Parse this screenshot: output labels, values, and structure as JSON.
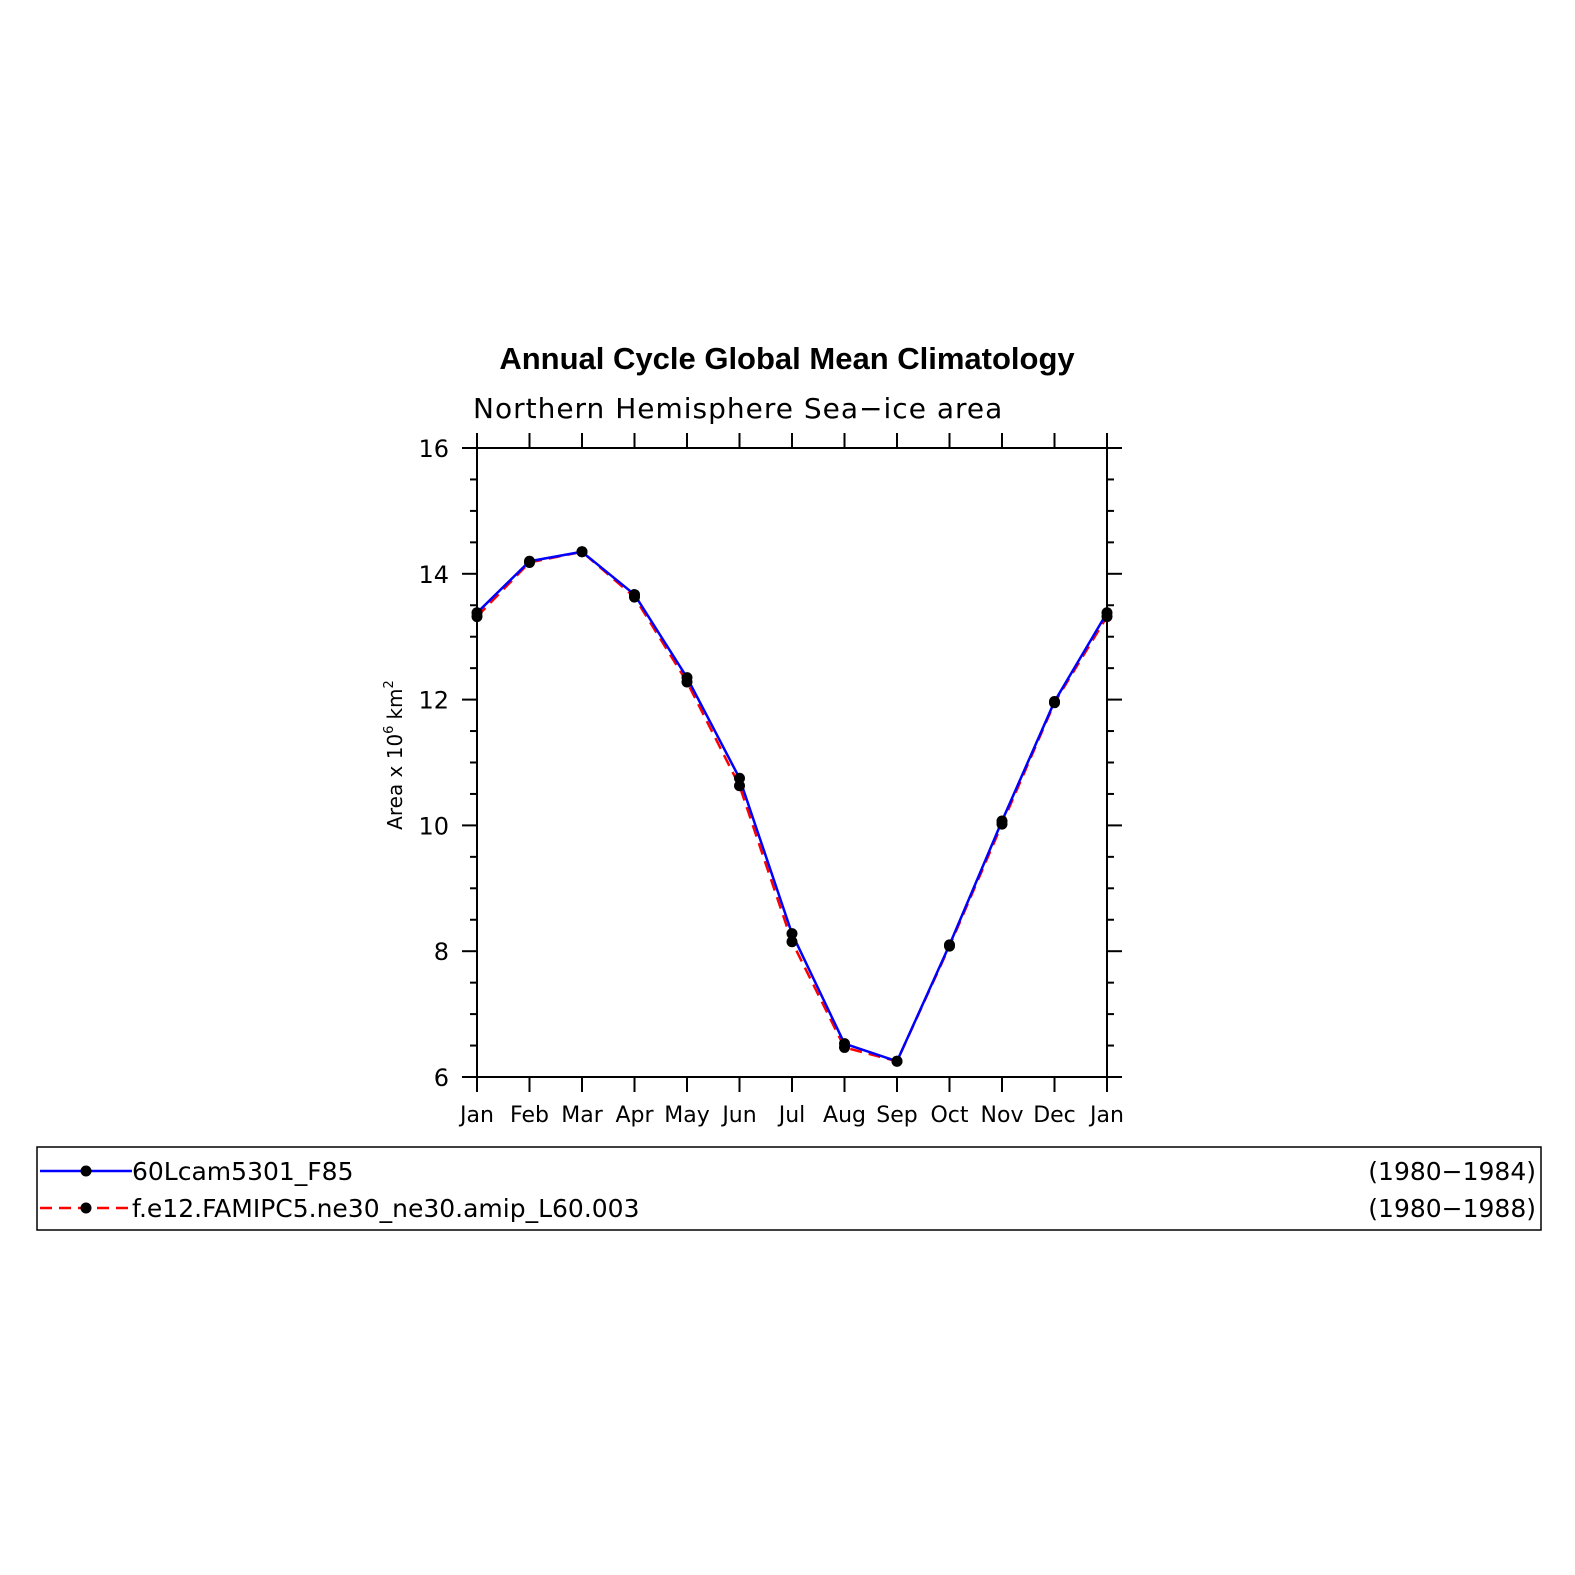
{
  "chart_data": {
    "type": "line",
    "title": "Annual Cycle Global Mean Climatology",
    "subtitle": "Northern Hemisphere Sea−ice area",
    "ylabel": "Area x 10",
    "ylabel_superscript": "6",
    "ylabel_unit": "km",
    "ylabel_unit_superscript": "2",
    "categories": [
      "Jan",
      "Feb",
      "Mar",
      "Apr",
      "May",
      "Jun",
      "Jul",
      "Aug",
      "Sep",
      "Oct",
      "Nov",
      "Dec",
      "Jan"
    ],
    "ylim": [
      6,
      16
    ],
    "yticks": [
      6,
      8,
      10,
      12,
      14,
      16
    ],
    "grid": false,
    "legend_position": "bottom",
    "series": [
      {
        "name": "60Lcam5301_F85",
        "period": "(1980−1984)",
        "color": "#0000ff",
        "style": "solid",
        "values": [
          13.38,
          14.2,
          14.35,
          13.67,
          12.35,
          10.75,
          8.28,
          6.53,
          6.25,
          8.1,
          10.07,
          11.97,
          13.38
        ]
      },
      {
        "name": "f.e12.FAMIPC5.ne30_ne30.amip_L60.003",
        "period": "(1980−1988)",
        "color": "#ff0000",
        "style": "dashed",
        "values": [
          13.32,
          14.18,
          14.35,
          13.63,
          12.28,
          10.63,
          8.15,
          6.47,
          6.25,
          8.08,
          10.02,
          11.95,
          13.32
        ]
      }
    ]
  }
}
